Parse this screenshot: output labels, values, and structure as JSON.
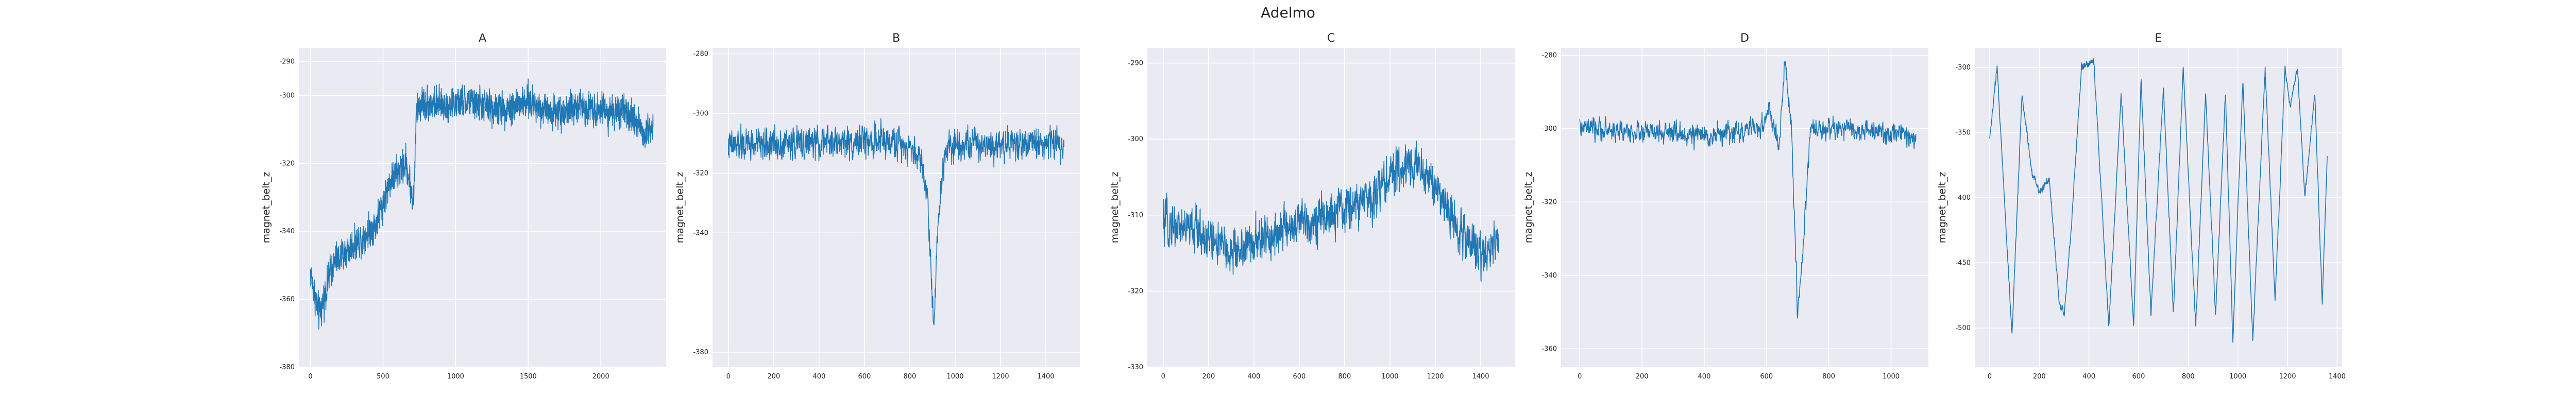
{
  "figure": {
    "title": "Adelmo"
  },
  "colors": {
    "line": "#1f77b4",
    "axes_bg": "#eaeaf2",
    "grid": "#ffffff",
    "text": "#262626"
  },
  "chart_data": [
    {
      "type": "line",
      "title": "A",
      "xlabel": "",
      "ylabel": "magnet_belt_z",
      "xlim": [
        -80,
        2450
      ],
      "ylim": [
        -380,
        -286
      ],
      "xticks": [
        0,
        500,
        1000,
        1500,
        2000
      ],
      "yticks": [
        -380,
        -360,
        -340,
        -320,
        -300,
        -290
      ],
      "grid": true,
      "n_points": 2400,
      "noise": 5,
      "x_anchors": [
        0,
        60,
        150,
        300,
        450,
        550,
        660,
        710,
        730,
        760,
        900,
        1100,
        1300,
        1500,
        1700,
        1900,
        2100,
        2250,
        2300,
        2360
      ],
      "y_anchors": [
        -352,
        -365,
        -350,
        -344,
        -338,
        -325,
        -320,
        -332,
        -305,
        -302,
        -303,
        -302,
        -304,
        -302,
        -305,
        -303,
        -305,
        -307,
        -312,
        -308
      ]
    },
    {
      "type": "line",
      "title": "B",
      "xlabel": "",
      "ylabel": "magnet_belt_z",
      "xlim": [
        -70,
        1550
      ],
      "ylim": [
        -385,
        -278
      ],
      "xticks": [
        0,
        200,
        400,
        600,
        800,
        1000,
        1200,
        1400
      ],
      "yticks": [
        -380,
        -340,
        -320,
        -300,
        -280
      ],
      "grid": true,
      "n_points": 1480,
      "noise": 5.5,
      "x_anchors": [
        0,
        200,
        400,
        600,
        780,
        850,
        880,
        905,
        930,
        960,
        1100,
        1300,
        1480
      ],
      "y_anchors": [
        -311,
        -310,
        -310,
        -309,
        -310,
        -315,
        -330,
        -370,
        -330,
        -310,
        -310,
        -310,
        -310
      ]
    },
    {
      "type": "line",
      "title": "C",
      "xlabel": "",
      "ylabel": "magnet_belt_z",
      "xlim": [
        -70,
        1550
      ],
      "ylim": [
        -330,
        -288
      ],
      "xticks": [
        0,
        200,
        400,
        600,
        800,
        1000,
        1200,
        1400
      ],
      "yticks": [
        -330,
        -320,
        -310,
        -300,
        -290
      ],
      "grid": true,
      "n_points": 1480,
      "noise": 3,
      "x_anchors": [
        0,
        150,
        300,
        450,
        600,
        750,
        900,
        1000,
        1100,
        1200,
        1300,
        1400,
        1480
      ],
      "y_anchors": [
        -311,
        -312,
        -315,
        -313,
        -311,
        -310,
        -308,
        -305,
        -303,
        -306,
        -312,
        -315,
        -313
      ]
    },
    {
      "type": "line",
      "title": "D",
      "xlabel": "",
      "ylabel": "magnet_belt_z",
      "xlim": [
        -60,
        1120
      ],
      "ylim": [
        -365,
        -278
      ],
      "xticks": [
        0,
        200,
        400,
        600,
        800,
        1000
      ],
      "yticks": [
        -360,
        -340,
        -320,
        -300,
        -280
      ],
      "grid": true,
      "n_points": 1080,
      "noise": 3,
      "x_anchors": [
        0,
        200,
        400,
        580,
        610,
        640,
        660,
        680,
        700,
        720,
        740,
        800,
        950,
        1080
      ],
      "y_anchors": [
        -300,
        -301,
        -302,
        -300,
        -295,
        -305,
        -282,
        -300,
        -350,
        -330,
        -300,
        -300,
        -301,
        -302
      ]
    },
    {
      "type": "line",
      "title": "E",
      "xlabel": "",
      "ylabel": "magnet_belt_z",
      "xlim": [
        -60,
        1420
      ],
      "ylim": [
        -530,
        -285
      ],
      "xticks": [
        0,
        200,
        400,
        600,
        800,
        1000,
        1200,
        1400
      ],
      "yticks": [
        -500,
        -450,
        -400,
        -350,
        -300
      ],
      "grid": true,
      "n_points": 1360,
      "noise": 3,
      "x_anchors": [
        0,
        30,
        90,
        130,
        170,
        200,
        240,
        280,
        300,
        330,
        370,
        420,
        480,
        530,
        580,
        610,
        650,
        700,
        740,
        780,
        830,
        870,
        910,
        950,
        980,
        1020,
        1060,
        1110,
        1150,
        1190,
        1210,
        1240,
        1270,
        1310,
        1340,
        1360
      ],
      "y_anchors": [
        -355,
        -300,
        -505,
        -320,
        -380,
        -395,
        -385,
        -480,
        -490,
        -420,
        -300,
        -295,
        -500,
        -320,
        -500,
        -310,
        -490,
        -315,
        -490,
        -300,
        -500,
        -320,
        -490,
        -320,
        -510,
        -310,
        -510,
        -300,
        -480,
        -300,
        -330,
        -300,
        -400,
        -320,
        -480,
        -370
      ]
    }
  ]
}
